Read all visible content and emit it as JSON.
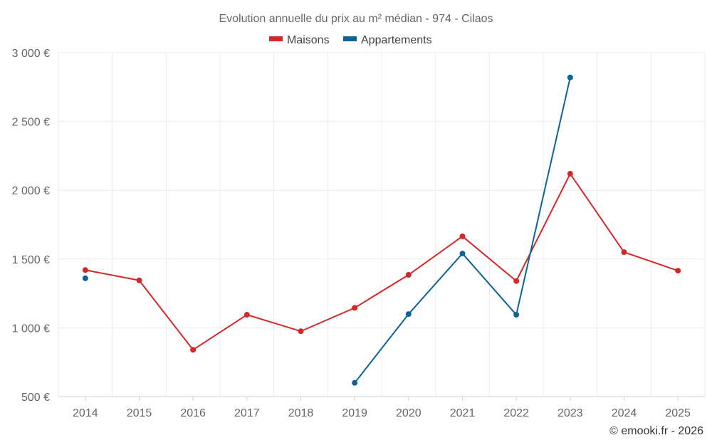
{
  "chart_data": {
    "type": "line",
    "title": "Evolution annuelle du prix au m² médian - 974 - Cilaos",
    "categories": [
      "2014",
      "2015",
      "2016",
      "2017",
      "2018",
      "2019",
      "2020",
      "2021",
      "2022",
      "2023",
      "2024",
      "2025"
    ],
    "ylim": [
      500,
      3000
    ],
    "yticks": [
      500,
      1000,
      1500,
      2000,
      2500,
      3000
    ],
    "ytick_labels": [
      "500 €",
      "1 000 €",
      "1 500 €",
      "2 000 €",
      "2 500 €",
      "3 000 €"
    ],
    "grid": true,
    "legend_position": "top-center",
    "series": [
      {
        "name": "Maisons",
        "color": "#d62728",
        "values": [
          1420,
          1345,
          840,
          1095,
          975,
          1145,
          1385,
          1665,
          1340,
          2120,
          1550,
          1415
        ]
      },
      {
        "name": "Appartements",
        "color": "#0a6499",
        "values": [
          1360,
          null,
          null,
          null,
          null,
          600,
          1100,
          1540,
          1095,
          2820,
          null,
          null
        ]
      }
    ]
  },
  "credit": "© emooki.fr - 2026"
}
